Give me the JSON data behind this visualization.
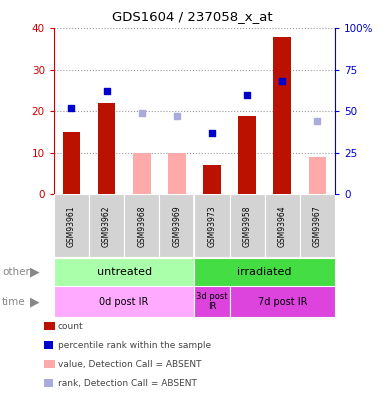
{
  "title": "GDS1604 / 237058_x_at",
  "samples": [
    "GSM93961",
    "GSM93962",
    "GSM93968",
    "GSM93969",
    "GSM93973",
    "GSM93958",
    "GSM93964",
    "GSM93967"
  ],
  "count_values": [
    15,
    22,
    null,
    null,
    7,
    19,
    38,
    null
  ],
  "count_absent": [
    null,
    null,
    10,
    10,
    null,
    null,
    null,
    9
  ],
  "rank_pct": [
    52,
    62,
    null,
    null,
    37,
    60,
    68,
    null
  ],
  "rank_absent_pct": [
    null,
    null,
    49,
    47,
    null,
    null,
    null,
    44
  ],
  "ylim_left": [
    0,
    40
  ],
  "ylim_right": [
    0,
    100
  ],
  "yticks_left": [
    0,
    10,
    20,
    30,
    40
  ],
  "yticks_right": [
    0,
    25,
    50,
    75,
    100
  ],
  "ytick_labels_right": [
    "0",
    "25",
    "50",
    "75",
    "100%"
  ],
  "bar_color_red": "#BB1100",
  "bar_color_pink": "#FFAAAA",
  "dot_color_blue": "#0000CC",
  "dot_color_lightblue": "#AAAADD",
  "axis_left_color": "#CC0000",
  "axis_right_color": "#0000CC",
  "bg_color": "#FFFFFF",
  "plot_bg": "#FFFFFF",
  "untreated_color": "#AAFFAA",
  "irradiated_color": "#44DD44",
  "time_light_color": "#FFAAFF",
  "time_dark_color": "#DD44DD",
  "label_bg": "#D3D3D3"
}
